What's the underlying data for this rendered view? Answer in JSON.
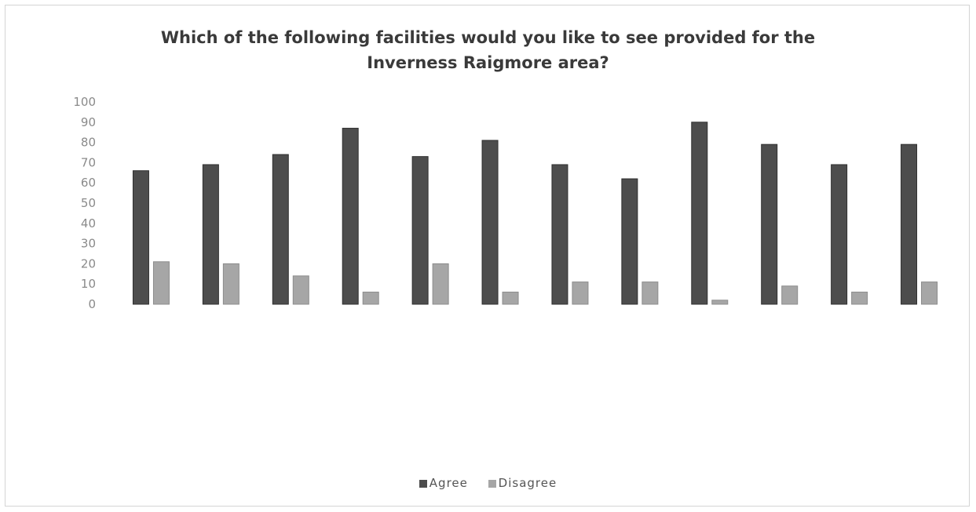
{
  "chart_data": {
    "type": "bar",
    "title": "Which of the following facilities would you like to see provided for the Inverness Raigmore area?",
    "title_lines": [
      "Which of the following facilities would you like to see provided for the",
      "Inverness Raigmore area?"
    ],
    "categories": [
      "",
      "",
      "",
      "",
      "",
      "",
      "",
      "",
      "",
      "",
      "",
      ""
    ],
    "series": [
      {
        "name": "Agree",
        "color": "#4d4d4d",
        "values": [
          66,
          69,
          74,
          87,
          73,
          81,
          69,
          62,
          90,
          79,
          69,
          79
        ]
      },
      {
        "name": "Disagree",
        "color": "#a6a6a6",
        "values": [
          21,
          20,
          14,
          6,
          20,
          6,
          11,
          11,
          2,
          9,
          6,
          11
        ]
      }
    ],
    "ylim": [
      0,
      100
    ],
    "yticks": [
      "0",
      "10",
      "20",
      "30",
      "40",
      "50",
      "60",
      "70",
      "80",
      "90",
      "100"
    ],
    "grid": false,
    "legend_position": "bottom"
  }
}
